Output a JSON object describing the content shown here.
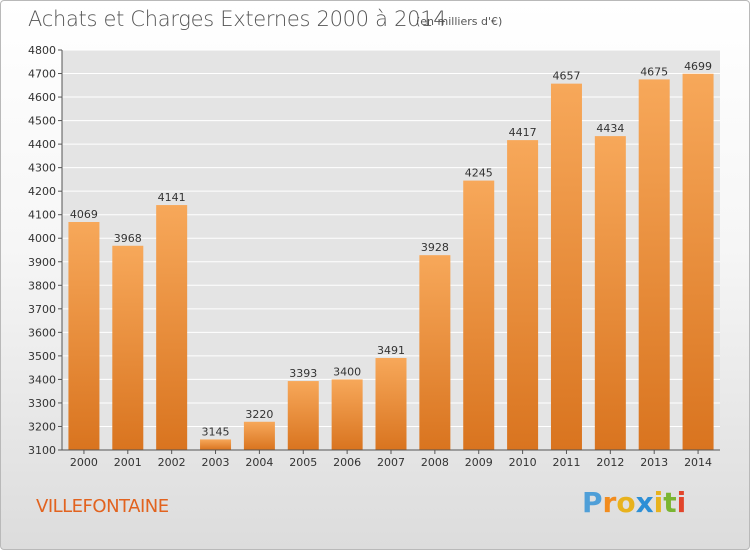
{
  "title": "Achats et Charges Externes 2000 à 2014",
  "subtitle": "(en milliers d'€)",
  "place": "VILLEFONTAINE",
  "brand": {
    "letters": [
      "P",
      "r",
      "o",
      "x",
      "i",
      "t",
      "i"
    ],
    "colors": [
      "#4f9fd8",
      "#f28c1e",
      "#e8b21d",
      "#2d8fd6",
      "#e8b21d",
      "#7ab532",
      "#e2452b"
    ]
  },
  "colors": {
    "bar_light": "#f7a85a",
    "bar_dark": "#d9741f",
    "grid": "#ffffff",
    "plot_bg": "#e4e4e4"
  },
  "chart_data": {
    "type": "bar",
    "categories": [
      "2000",
      "2001",
      "2002",
      "2003",
      "2004",
      "2005",
      "2006",
      "2007",
      "2008",
      "2009",
      "2010",
      "2011",
      "2012",
      "2013",
      "2014"
    ],
    "values": [
      4069,
      3968,
      4141,
      3145,
      3220,
      3393,
      3400,
      3491,
      3928,
      4245,
      4417,
      4657,
      4434,
      4675,
      4699
    ],
    "ylim": [
      3100,
      4800
    ],
    "yticks": [
      3100,
      3200,
      3300,
      3400,
      3500,
      3600,
      3700,
      3800,
      3900,
      4000,
      4100,
      4200,
      4300,
      4400,
      4500,
      4600,
      4700,
      4800
    ],
    "grid": true
  }
}
